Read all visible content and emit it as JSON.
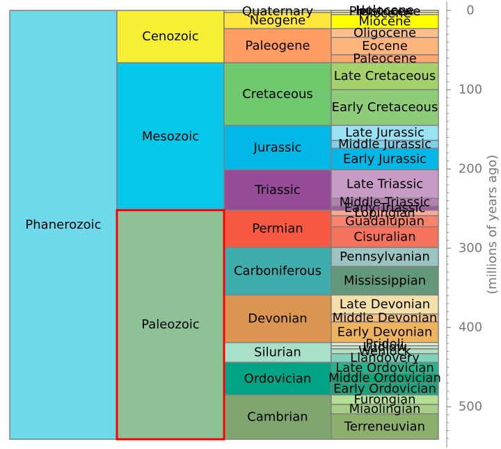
{
  "chart_data": {
    "type": "icicle",
    "ylabel": "(millions of years ago)",
    "ylim": [
      0,
      541
    ],
    "y_inverted": true,
    "ticks": [
      0,
      100,
      200,
      300,
      400,
      500
    ],
    "highlight": "Paleozoic",
    "highlight_color": "#ff0000",
    "levels": [
      [
        {
          "name": "Phanerozoic",
          "start": 0,
          "end": 541,
          "color": "#6fd9ec"
        }
      ],
      [
        {
          "name": "Cenozoic",
          "start": 0,
          "end": 66,
          "color": "#f7ef34"
        },
        {
          "name": "Mesozoic",
          "start": 66,
          "end": 252,
          "color": "#07c8e9"
        },
        {
          "name": "Paleozoic",
          "start": 252,
          "end": 541,
          "color": "#8fc197"
        }
      ],
      [
        {
          "name": "Quaternary",
          "start": 0,
          "end": 2.6,
          "color": "#f9f97f"
        },
        {
          "name": "Neogene",
          "start": 2.6,
          "end": 23,
          "color": "#ffe63a"
        },
        {
          "name": "Paleogene",
          "start": 23,
          "end": 66,
          "color": "#fe9c62"
        },
        {
          "name": "Cretaceous",
          "start": 66,
          "end": 145,
          "color": "#70c86f"
        },
        {
          "name": "Jurassic",
          "start": 145,
          "end": 201,
          "color": "#03b8e6"
        },
        {
          "name": "Triassic",
          "start": 201,
          "end": 252,
          "color": "#964b96"
        },
        {
          "name": "Permian",
          "start": 252,
          "end": 299,
          "color": "#f75940"
        },
        {
          "name": "Carboniferous",
          "start": 299,
          "end": 359,
          "color": "#3fadac"
        },
        {
          "name": "Devonian",
          "start": 359,
          "end": 419,
          "color": "#dc9550"
        },
        {
          "name": "Silurian",
          "start": 419,
          "end": 444,
          "color": "#a7e0c7"
        },
        {
          "name": "Ordovician",
          "start": 444,
          "end": 485,
          "color": "#02a486"
        },
        {
          "name": "Cambrian",
          "start": 485,
          "end": 541,
          "color": "#7fa66f"
        }
      ],
      [
        {
          "name": "Holocene",
          "start": 0,
          "end": 0.01,
          "color": "#fef1e0"
        },
        {
          "name": "Pleistocene",
          "start": 0.01,
          "end": 2.6,
          "color": "#fff0b8"
        },
        {
          "name": "Pliocene",
          "start": 2.6,
          "end": 5.3,
          "color": "#ffff99"
        },
        {
          "name": "Miocene",
          "start": 5.3,
          "end": 23,
          "color": "#ffff00"
        },
        {
          "name": "Oligocene",
          "start": 23,
          "end": 34,
          "color": "#fdc08c"
        },
        {
          "name": "Eocene",
          "start": 34,
          "end": 56,
          "color": "#fdb57d"
        },
        {
          "name": "Paleocene",
          "start": 56,
          "end": 66,
          "color": "#fda870"
        },
        {
          "name": "Late Cretaceous",
          "start": 66,
          "end": 100,
          "color": "#a5d16a"
        },
        {
          "name": "Early Cretaceous",
          "start": 100,
          "end": 145,
          "color": "#8fcc7a"
        },
        {
          "name": "Late Jurassic",
          "start": 145,
          "end": 164,
          "color": "#99e2f5"
        },
        {
          "name": "Middle Jurassic",
          "start": 164,
          "end": 174,
          "color": "#7fd0e9"
        },
        {
          "name": "Early Jurassic",
          "start": 174,
          "end": 201,
          "color": "#03b8e6"
        },
        {
          "name": "Late Triassic",
          "start": 201,
          "end": 237,
          "color": "#c79bc5"
        },
        {
          "name": "Middle Triassic",
          "start": 237,
          "end": 247,
          "color": "#b47fb2"
        },
        {
          "name": "Early Triassic",
          "start": 247,
          "end": 252,
          "color": "#9e5ba0"
        },
        {
          "name": "Lopingian",
          "start": 252,
          "end": 259,
          "color": "#fba894"
        },
        {
          "name": "Guadalupian",
          "start": 259,
          "end": 273,
          "color": "#fa826a"
        },
        {
          "name": "Cisuralian",
          "start": 273,
          "end": 299,
          "color": "#f5735c"
        },
        {
          "name": "Pennsylvanian",
          "start": 299,
          "end": 323,
          "color": "#9bc5c0"
        },
        {
          "name": "Mississippian",
          "start": 323,
          "end": 359,
          "color": "#62977a"
        },
        {
          "name": "Late Devonian",
          "start": 359,
          "end": 383,
          "color": "#f5dfa8"
        },
        {
          "name": "Middle Devonian",
          "start": 383,
          "end": 393,
          "color": "#f3c384"
        },
        {
          "name": "Early Devonian",
          "start": 393,
          "end": 419,
          "color": "#eeb35d"
        },
        {
          "name": "Pridoli",
          "start": 419,
          "end": 423,
          "color": "#e6f5e1"
        },
        {
          "name": "Ludlow",
          "start": 423,
          "end": 427,
          "color": "#bfe6cf"
        },
        {
          "name": "Wenlock",
          "start": 427,
          "end": 433,
          "color": "#b3e1c2"
        },
        {
          "name": "Llandovery",
          "start": 433,
          "end": 444,
          "color": "#7fd2bb"
        },
        {
          "name": "Late Ordovician",
          "start": 444,
          "end": 458,
          "color": "#26b28d"
        },
        {
          "name": "Middle Ordovician",
          "start": 458,
          "end": 470,
          "color": "#00a97c"
        },
        {
          "name": "Early Ordovician",
          "start": 470,
          "end": 485,
          "color": "#1aa37e"
        },
        {
          "name": "Furongian",
          "start": 485,
          "end": 497,
          "color": "#b3e095"
        },
        {
          "name": "Miaolingian",
          "start": 497,
          "end": 509,
          "color": "#a6cf86"
        },
        {
          "name": "Terreneuvian",
          "start": 509,
          "end": 541,
          "color": "#8cb06c"
        }
      ]
    ]
  }
}
